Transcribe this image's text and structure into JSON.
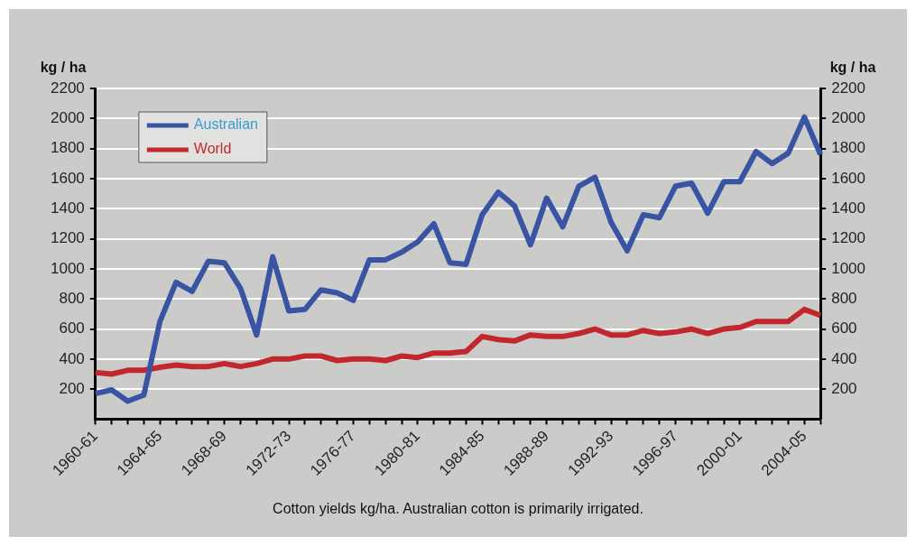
{
  "chart_data": {
    "type": "line",
    "categories": [
      "1960-61",
      null,
      null,
      null,
      "1964-65",
      null,
      null,
      null,
      "1968-69",
      null,
      null,
      null,
      "1972-73",
      null,
      null,
      null,
      "1976-77",
      null,
      null,
      null,
      "1980-81",
      null,
      null,
      null,
      "1984-85",
      null,
      null,
      null,
      "1988-89",
      null,
      null,
      null,
      "1992-93",
      null,
      null,
      null,
      "1996-97",
      null,
      null,
      null,
      "2000-01",
      null,
      null,
      null,
      "2004-05",
      null
    ],
    "series": [
      {
        "name": "Australian",
        "color": "#3a54a4",
        "values": [
          170,
          195,
          120,
          160,
          650,
          910,
          850,
          1050,
          1040,
          870,
          560,
          1080,
          720,
          730,
          860,
          840,
          790,
          1060,
          1060,
          1110,
          1180,
          1300,
          1040,
          1030,
          1360,
          1510,
          1420,
          1160,
          1470,
          1280,
          1550,
          1610,
          1310,
          1120,
          1360,
          1340,
          1550,
          1570,
          1370,
          1580,
          1580,
          1780,
          1700,
          1770,
          2010,
          1760
        ]
      },
      {
        "name": "World",
        "color": "#c1272d",
        "values": [
          310,
          300,
          325,
          325,
          345,
          360,
          350,
          350,
          370,
          350,
          370,
          400,
          400,
          420,
          420,
          390,
          400,
          400,
          390,
          420,
          410,
          440,
          440,
          450,
          550,
          530,
          520,
          560,
          550,
          550,
          570,
          600,
          560,
          560,
          590,
          570,
          580,
          600,
          570,
          600,
          610,
          650,
          650,
          650,
          730,
          690
        ]
      }
    ],
    "ylabel": "kg / ha",
    "y2label": "kg / ha",
    "ylim": [
      0,
      2200
    ],
    "yticks": [
      200,
      400,
      600,
      800,
      1000,
      1200,
      1400,
      1600,
      1800,
      2000,
      2200
    ],
    "y2lim": [
      0,
      2200
    ],
    "y2ticks": [
      200,
      400,
      600,
      800,
      1000,
      1200,
      1400,
      1600,
      1800,
      2000,
      2200
    ],
    "grid": "y",
    "legend": "top left",
    "marker": "none",
    "line_style": "solid",
    "annotations": [
      "Cotton yields kg/ha. Australian cotton is primarily irrigated."
    ]
  }
}
